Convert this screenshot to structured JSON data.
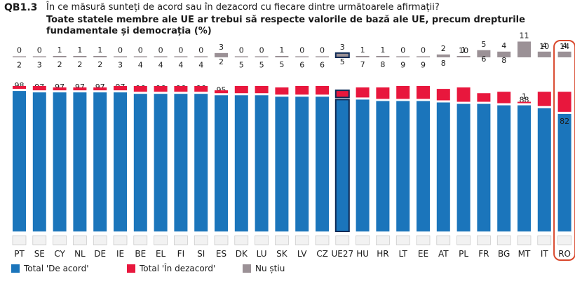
{
  "header": {
    "code": "QB1.3",
    "question": "În ce măsură sunteți de acord sau în dezacord cu fiecare dintre următoarele afirmații?",
    "title": "Toate statele membre ale UE ar trebui să respecte valorile de bază ale UE, precum drepturile fundamentale și democrația (%)"
  },
  "colors": {
    "agree": "#1b75bb",
    "disagree": "#e8173d",
    "dontknow": "#9b9196",
    "highlight": "#d9472b"
  },
  "chart_data": {
    "type": "bar",
    "stacked": true,
    "categories": [
      "PT",
      "SE",
      "CY",
      "NL",
      "DE",
      "IE",
      "BE",
      "EL",
      "FI",
      "SI",
      "ES",
      "DK",
      "LU",
      "SK",
      "LV",
      "CZ",
      "UE27",
      "HU",
      "HR",
      "LT",
      "EE",
      "AT",
      "PL",
      "FR",
      "BG",
      "MT",
      "IT",
      "RO"
    ],
    "series": [
      {
        "name": "Total 'De acord'",
        "values": [
          98,
          97,
          97,
          97,
          97,
          97,
          96,
          96,
          96,
          96,
          95,
          95,
          95,
          94,
          94,
          94,
          92,
          92,
          91,
          91,
          91,
          90,
          89,
          89,
          88,
          88,
          86,
          82
        ]
      },
      {
        "name": "Total 'În dezacord'",
        "values": [
          2,
          3,
          2,
          2,
          2,
          3,
          4,
          4,
          4,
          4,
          2,
          5,
          5,
          5,
          6,
          6,
          5,
          7,
          8,
          9,
          9,
          8,
          10,
          6,
          8,
          1,
          10,
          14
        ]
      },
      {
        "name": "Nu știu",
        "values": [
          0,
          0,
          1,
          1,
          1,
          0,
          0,
          0,
          0,
          0,
          3,
          0,
          0,
          1,
          0,
          0,
          3,
          1,
          1,
          0,
          0,
          2,
          1,
          5,
          4,
          11,
          4,
          4
        ]
      }
    ],
    "highlighted_category": "RO",
    "legend": [
      "Total 'De acord'",
      "Total 'În dezacord'",
      "Nu știu"
    ],
    "legend_position": "bottom"
  }
}
